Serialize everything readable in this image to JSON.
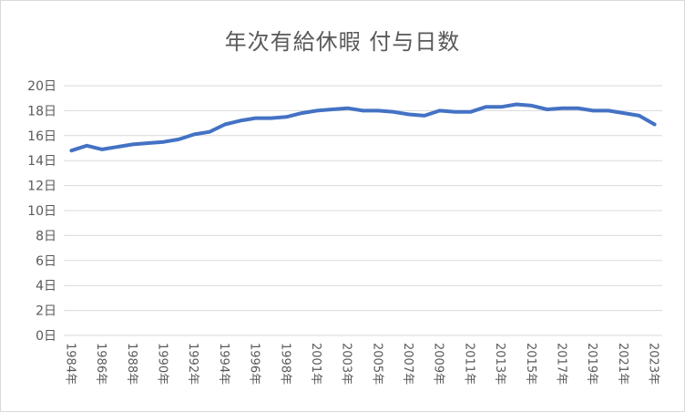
{
  "chart": {
    "title": "年次有給休暇 付与日数",
    "line_color": "#4472c4",
    "grid_color": "#d9d9d9",
    "text_color": "#595959"
  },
  "chart_data": {
    "type": "line",
    "title": "年次有給休暇 付与日数",
    "xlabel": "",
    "ylabel": "",
    "ylim": [
      0,
      20
    ],
    "y_ticks": [
      "0日",
      "2日",
      "4日",
      "6日",
      "8日",
      "10日",
      "12日",
      "14日",
      "16日",
      "18日",
      "20日"
    ],
    "grid": true,
    "legend": "none",
    "x_tick_labels": [
      "1984年",
      "1986年",
      "1988年",
      "1990年",
      "1992年",
      "1994年",
      "1996年",
      "1998年",
      "2001年",
      "2003年",
      "2005年",
      "2007年",
      "2009年",
      "2011年",
      "2013年",
      "2015年",
      "2017年",
      "2019年",
      "2021年",
      "2023年"
    ],
    "categories": [
      "1984年",
      "1985年",
      "1986年",
      "1987年",
      "1988年",
      "1989年",
      "1990年",
      "1991年",
      "1992年",
      "1993年",
      "1994年",
      "1995年",
      "1996年",
      "1997年",
      "1998年",
      "1999年",
      "2001年",
      "2002年",
      "2003年",
      "2004年",
      "2005年",
      "2006年",
      "2007年",
      "2008年",
      "2009年",
      "2010年",
      "2011年",
      "2012年",
      "2013年",
      "2014年",
      "2015年",
      "2016年",
      "2017年",
      "2018年",
      "2019年",
      "2020年",
      "2021年",
      "2022年",
      "2023年"
    ],
    "series": [
      {
        "name": "付与日数",
        "values": [
          14.8,
          15.2,
          14.9,
          15.1,
          15.3,
          15.4,
          15.5,
          15.7,
          16.1,
          16.3,
          16.9,
          17.2,
          17.4,
          17.4,
          17.5,
          17.8,
          18.0,
          18.1,
          18.2,
          18.0,
          18.0,
          17.9,
          17.7,
          17.6,
          18.0,
          17.9,
          17.9,
          18.3,
          18.3,
          18.5,
          18.4,
          18.1,
          18.2,
          18.2,
          18.0,
          18.0,
          17.8,
          17.6,
          16.9
        ]
      }
    ]
  }
}
